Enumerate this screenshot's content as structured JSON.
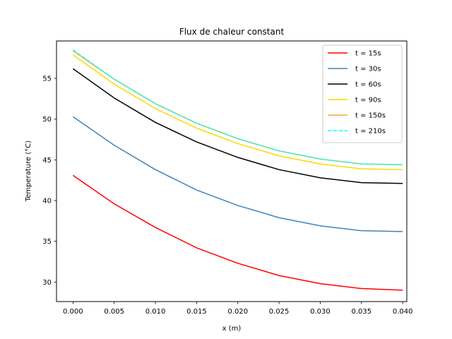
{
  "chart_data": {
    "type": "line",
    "title": "Flux de chaleur constant",
    "xlabel": "x (m)",
    "ylabel": "Temperature (°C)",
    "xlim": [
      -0.002,
      0.0405
    ],
    "ylim": [
      27.6,
      59.6
    ],
    "x_ticks": [
      0.0,
      0.005,
      0.01,
      0.015,
      0.02,
      0.025,
      0.03,
      0.035,
      0.04
    ],
    "x_tick_labels": [
      "0.000",
      "0.005",
      "0.010",
      "0.015",
      "0.020",
      "0.025",
      "0.030",
      "0.035",
      "0.040"
    ],
    "y_ticks": [
      30,
      35,
      40,
      45,
      50,
      55
    ],
    "y_tick_labels": [
      "30",
      "35",
      "40",
      "45",
      "50",
      "55"
    ],
    "grid": false,
    "legend_position": "top-right",
    "x": [
      0.0,
      0.005,
      0.01,
      0.015,
      0.02,
      0.025,
      0.03,
      0.035,
      0.04
    ],
    "series": [
      {
        "name": "t = 15s",
        "color": "#ff0000",
        "style": "solid",
        "values": [
          43.1,
          39.6,
          36.7,
          34.2,
          32.3,
          30.8,
          29.8,
          29.2,
          29.0
        ]
      },
      {
        "name": "t = 30s",
        "color": "#4682b4",
        "style": "solid",
        "values": [
          50.3,
          46.8,
          43.8,
          41.3,
          39.4,
          37.9,
          36.9,
          36.3,
          36.2
        ]
      },
      {
        "name": "t = 60s",
        "color": "#000000",
        "style": "solid",
        "values": [
          56.2,
          52.6,
          49.6,
          47.2,
          45.3,
          43.8,
          42.8,
          42.2,
          42.1
        ]
      },
      {
        "name": "t = 90s",
        "color": "#ffd700",
        "style": "solid",
        "values": [
          57.9,
          54.3,
          51.3,
          48.9,
          47.0,
          45.5,
          44.5,
          43.9,
          43.8
        ]
      },
      {
        "name": "t = 150s",
        "color": "#f0b030",
        "style": "solid",
        "values": [
          58.4,
          54.9,
          51.9,
          49.5,
          47.6,
          46.1,
          45.1,
          44.5,
          44.4
        ]
      },
      {
        "name": "t = 210s",
        "color": "#00ffff",
        "style": "dashed",
        "values": [
          58.5,
          54.9,
          51.9,
          49.5,
          47.6,
          46.1,
          45.1,
          44.5,
          44.4
        ]
      }
    ]
  }
}
